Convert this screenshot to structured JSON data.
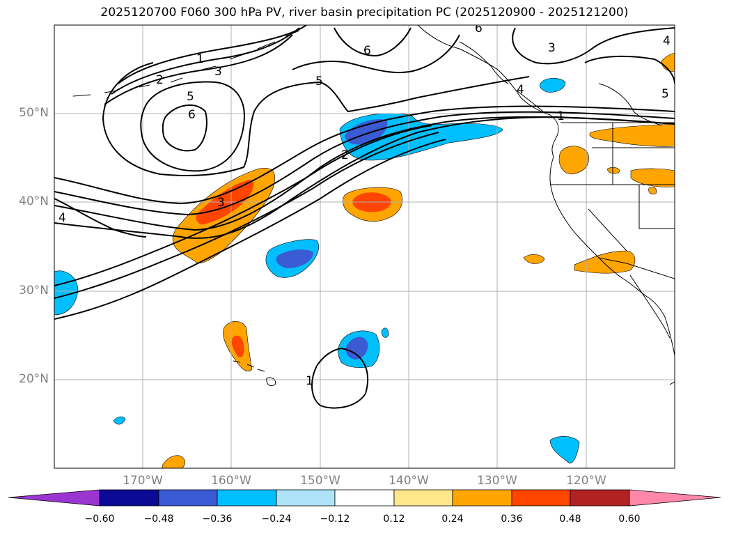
{
  "title": "2025120700 F060 300 hPa PV, river basin precipitation PC (2025120900 - 2025121200)",
  "latitude_labels": [
    "50°N",
    "40°N",
    "30°N",
    "20°N"
  ],
  "longitude_labels": [
    "170°W",
    "160°W",
    "150°W",
    "140°W",
    "130°W",
    "120°W"
  ],
  "contour_labels": [
    "1",
    "2",
    "3",
    "5",
    "6",
    "6",
    "5",
    "1",
    "2",
    "3",
    "4",
    "4",
    "5",
    "3",
    "6",
    "4",
    "1"
  ],
  "colorbar": {
    "tick_labels": [
      "−0.60",
      "−0.48",
      "−0.36",
      "−0.24",
      "−0.12",
      "0.12",
      "0.24",
      "0.36",
      "0.48",
      "0.60"
    ],
    "colors": [
      "#9b35d1",
      "#0a0a96",
      "#3a5bd4",
      "#00bfff",
      "#aee3f7",
      "#ffffff",
      "#ffe88c",
      "#ffa500",
      "#ff4500",
      "#b22222",
      "#ff88aa"
    ],
    "extend": "both"
  },
  "colors": {
    "land_outline": "#000000",
    "grid": "#b0b0b0",
    "pv_contour": "#000000",
    "orange": "#ffa500",
    "red_orange": "#ff4500",
    "light_blue": "#00bfff",
    "mid_blue": "#3a5bd4"
  }
}
